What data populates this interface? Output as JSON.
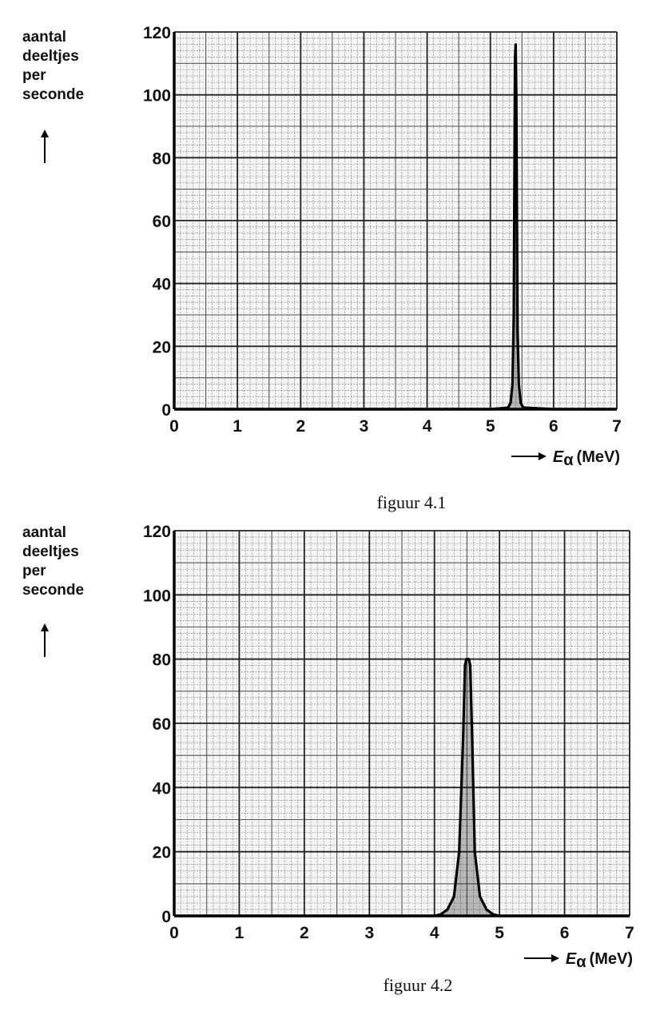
{
  "chart_data": [
    {
      "type": "line",
      "caption": "figuur 4.1",
      "ylabel_lines": [
        "aantal",
        "deeltjes",
        "per",
        "seconde"
      ],
      "xlabel": {
        "symbol": "E",
        "subscript": "α",
        "unit": "(MeV)"
      },
      "xlim": [
        0,
        7
      ],
      "ylim": [
        0,
        120
      ],
      "x_ticks": [
        0,
        1,
        2,
        3,
        4,
        5,
        6,
        7
      ],
      "y_ticks": [
        0,
        20,
        40,
        60,
        80,
        100,
        120
      ],
      "grid": true,
      "series": [
        {
          "x": [
            0,
            5.0,
            5.28,
            5.32,
            5.35,
            5.37,
            5.38,
            5.39,
            5.4,
            5.41,
            5.42,
            5.43,
            5.45,
            5.48,
            5.52,
            6.0,
            7.0
          ],
          "y": [
            0,
            0,
            0.5,
            2,
            8,
            30,
            70,
            112,
            116,
            100,
            60,
            25,
            8,
            2,
            0.5,
            0,
            0
          ]
        }
      ]
    },
    {
      "type": "line",
      "caption": "figuur 4.2",
      "ylabel_lines": [
        "aantal",
        "deeltjes",
        "per",
        "seconde"
      ],
      "xlabel": {
        "symbol": "E",
        "subscript": "α",
        "unit": "(MeV)"
      },
      "xlim": [
        0,
        7
      ],
      "ylim": [
        0,
        120
      ],
      "x_ticks": [
        0,
        1,
        2,
        3,
        4,
        5,
        6,
        7
      ],
      "y_ticks": [
        0,
        20,
        40,
        60,
        80,
        100,
        120
      ],
      "grid": true,
      "series": [
        {
          "x": [
            0,
            4.0,
            4.1,
            4.2,
            4.3,
            4.38,
            4.44,
            4.47,
            4.49,
            4.51,
            4.53,
            4.55,
            4.58,
            4.62,
            4.7,
            4.8,
            4.9,
            5.0,
            7.0
          ],
          "y": [
            0,
            0,
            0.5,
            2,
            6,
            20,
            55,
            78,
            80,
            80,
            80,
            78,
            55,
            20,
            6,
            2,
            0.5,
            0,
            0
          ]
        }
      ]
    }
  ]
}
